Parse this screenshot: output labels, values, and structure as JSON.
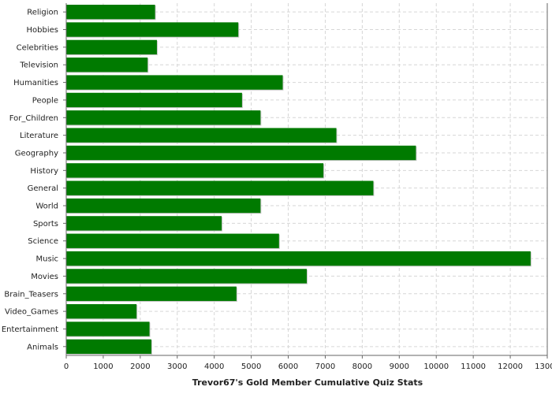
{
  "chart_data": {
    "type": "bar",
    "orientation": "horizontal",
    "title": "",
    "xlabel": "Trevor67's Gold Member Cumulative Quiz Stats",
    "ylabel": "",
    "xlim": [
      0,
      13000
    ],
    "xticks": [
      0,
      1000,
      2000,
      3000,
      4000,
      5000,
      6000,
      7000,
      8000,
      9000,
      10000,
      11000,
      12000,
      13000
    ],
    "grid": true,
    "legend": "none",
    "bar_color": "#007a00",
    "categories": [
      "Religion",
      "Hobbies",
      "Celebrities",
      "Television",
      "Humanities",
      "People",
      "For_Children",
      "Literature",
      "Geography",
      "History",
      "General",
      "World",
      "Sports",
      "Science",
      "Music",
      "Movies",
      "Brain_Teasers",
      "Video_Games",
      "Entertainment",
      "Animals"
    ],
    "values": [
      2400,
      4650,
      2450,
      2200,
      5850,
      4750,
      5250,
      7300,
      9450,
      6950,
      8300,
      5250,
      4200,
      5750,
      12550,
      6500,
      4600,
      1900,
      2250,
      2300
    ]
  }
}
